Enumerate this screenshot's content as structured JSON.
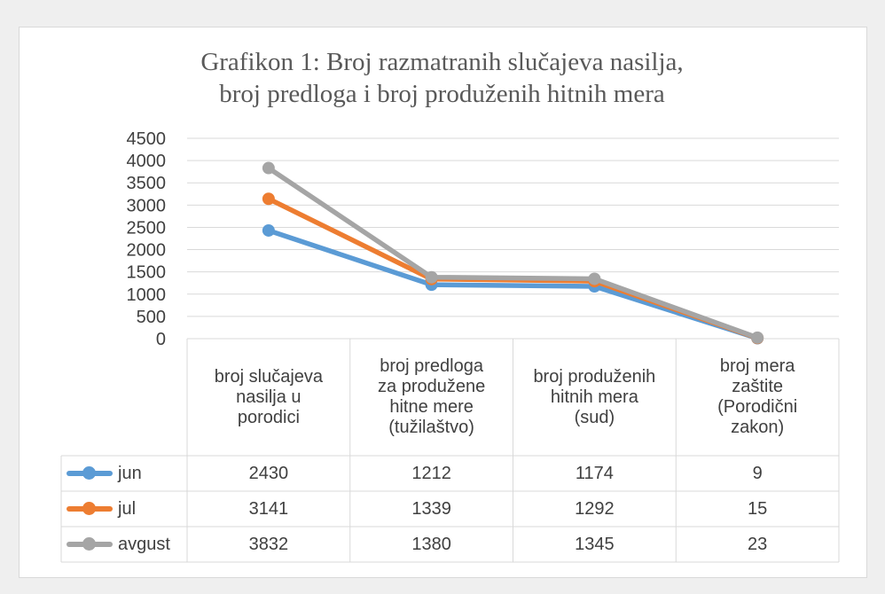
{
  "chart_data": {
    "type": "line",
    "title_lines": [
      "Grafikon 1: Broj razmatranih slučajeva nasilja,",
      "broj predloga i broj produženih hitnih mera"
    ],
    "categories": [
      [
        "broj slučajeva",
        "nasilja u",
        "porodici"
      ],
      [
        "broj predloga",
        "za produžene",
        "hitne mere",
        "(tužilaštvo)"
      ],
      [
        "broj produženih",
        "hitnih mera",
        "(sud)"
      ],
      [
        "broj mera",
        "zaštite",
        "(Porodični",
        "zakon)"
      ]
    ],
    "ylim": [
      0,
      4500
    ],
    "yticks": [
      "0",
      "500",
      "1000",
      "1500",
      "2000",
      "2500",
      "3000",
      "3500",
      "4000",
      "4500"
    ],
    "grid": true,
    "legend_position": "data-table-left",
    "series": [
      {
        "name": "jun",
        "color": "#5b9bd5",
        "values": [
          2430,
          1212,
          1174,
          9
        ]
      },
      {
        "name": "jul",
        "color": "#ed7d31",
        "values": [
          3141,
          1339,
          1292,
          15
        ]
      },
      {
        "name": "avgust",
        "color": "#a5a5a5",
        "values": [
          3832,
          1380,
          1345,
          23
        ]
      }
    ]
  }
}
